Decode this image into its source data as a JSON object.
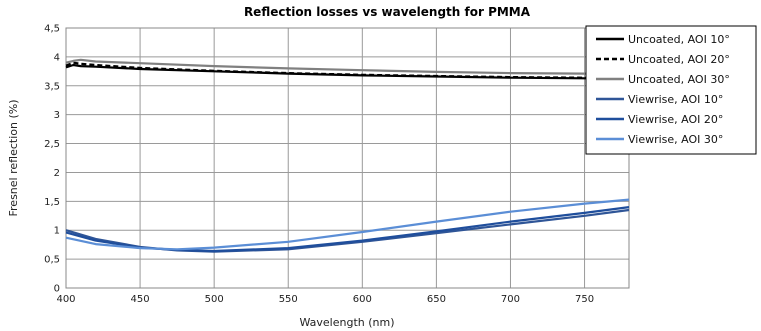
{
  "chart_data": {
    "type": "line",
    "title": "Reflection losses vs wavelength for PMMA",
    "xlabel": "Wavelength (nm)",
    "ylabel": "Fresnel reflection (%)",
    "xlim": [
      400,
      780
    ],
    "ylim": [
      0,
      4.5
    ],
    "x_ticks": [
      "400",
      "450",
      "500",
      "550",
      "600",
      "650",
      "700",
      "750"
    ],
    "y_ticks": [
      "0",
      "0,5",
      "1",
      "1,5",
      "2",
      "2,5",
      "3",
      "3,5",
      "4",
      "4,5"
    ],
    "grid": true,
    "legend_position": "top-right",
    "series": [
      {
        "name": "Uncoated, AOI 10°",
        "color": "#000000",
        "dash": "solid",
        "x": [
          400,
          405,
          410,
          420,
          450,
          500,
          550,
          600,
          650,
          700,
          750,
          780
        ],
        "y": [
          3.82,
          3.86,
          3.84,
          3.83,
          3.79,
          3.75,
          3.71,
          3.68,
          3.66,
          3.64,
          3.63,
          3.62
        ]
      },
      {
        "name": "Uncoated, AOI 20°",
        "color": "#000000",
        "dash": "dashed",
        "x": [
          400,
          405,
          410,
          420,
          450,
          500,
          550,
          600,
          650,
          700,
          750,
          780
        ],
        "y": [
          3.85,
          3.9,
          3.88,
          3.86,
          3.81,
          3.76,
          3.72,
          3.69,
          3.67,
          3.65,
          3.64,
          3.63
        ]
      },
      {
        "name": "Uncoated, AOI 30°",
        "color": "#808080",
        "dash": "solid",
        "x": [
          400,
          405,
          410,
          420,
          450,
          500,
          550,
          600,
          650,
          700,
          750,
          780
        ],
        "y": [
          3.9,
          3.93,
          3.95,
          3.92,
          3.89,
          3.84,
          3.8,
          3.77,
          3.74,
          3.72,
          3.71,
          3.7
        ]
      },
      {
        "name": "Viewrise, AOI 10°",
        "color": "#2f5597",
        "dash": "solid",
        "x": [
          400,
          420,
          450,
          475,
          500,
          550,
          600,
          650,
          700,
          750,
          780
        ],
        "y": [
          1.0,
          0.85,
          0.71,
          0.65,
          0.63,
          0.67,
          0.8,
          0.95,
          1.1,
          1.25,
          1.35
        ]
      },
      {
        "name": "Viewrise, AOI 20°",
        "color": "#1f4e9c",
        "dash": "solid",
        "x": [
          400,
          420,
          450,
          475,
          500,
          550,
          600,
          650,
          700,
          750,
          780
        ],
        "y": [
          0.96,
          0.82,
          0.7,
          0.66,
          0.64,
          0.69,
          0.82,
          0.98,
          1.15,
          1.3,
          1.4
        ]
      },
      {
        "name": "Viewrise, AOI 30°",
        "color": "#5b8ed6",
        "dash": "solid",
        "x": [
          400,
          420,
          450,
          475,
          500,
          550,
          600,
          650,
          700,
          750,
          780
        ],
        "y": [
          0.87,
          0.76,
          0.69,
          0.67,
          0.7,
          0.8,
          0.97,
          1.15,
          1.32,
          1.46,
          1.53
        ]
      }
    ]
  }
}
